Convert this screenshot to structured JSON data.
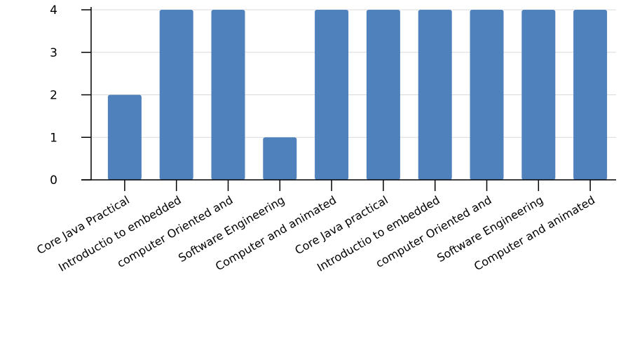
{
  "chart_data": {
    "type": "bar",
    "title": "",
    "xlabel": "",
    "ylabel": "",
    "ylim": [
      0,
      4
    ],
    "yticks": [
      0,
      1,
      2,
      3,
      4
    ],
    "grid": true,
    "bar_color": "#4f81bd",
    "categories": [
      "Core Java Practical",
      "Introductio to embedded",
      "computer Oriented and",
      "Software Engineering",
      "Computer and animated",
      "Core Java practical",
      "Introductio to embedded",
      "computer Oriented and",
      "Software Engineering",
      "Computer and animated"
    ],
    "values": [
      2,
      4,
      4,
      1,
      4,
      4,
      4,
      4,
      4,
      4
    ]
  }
}
